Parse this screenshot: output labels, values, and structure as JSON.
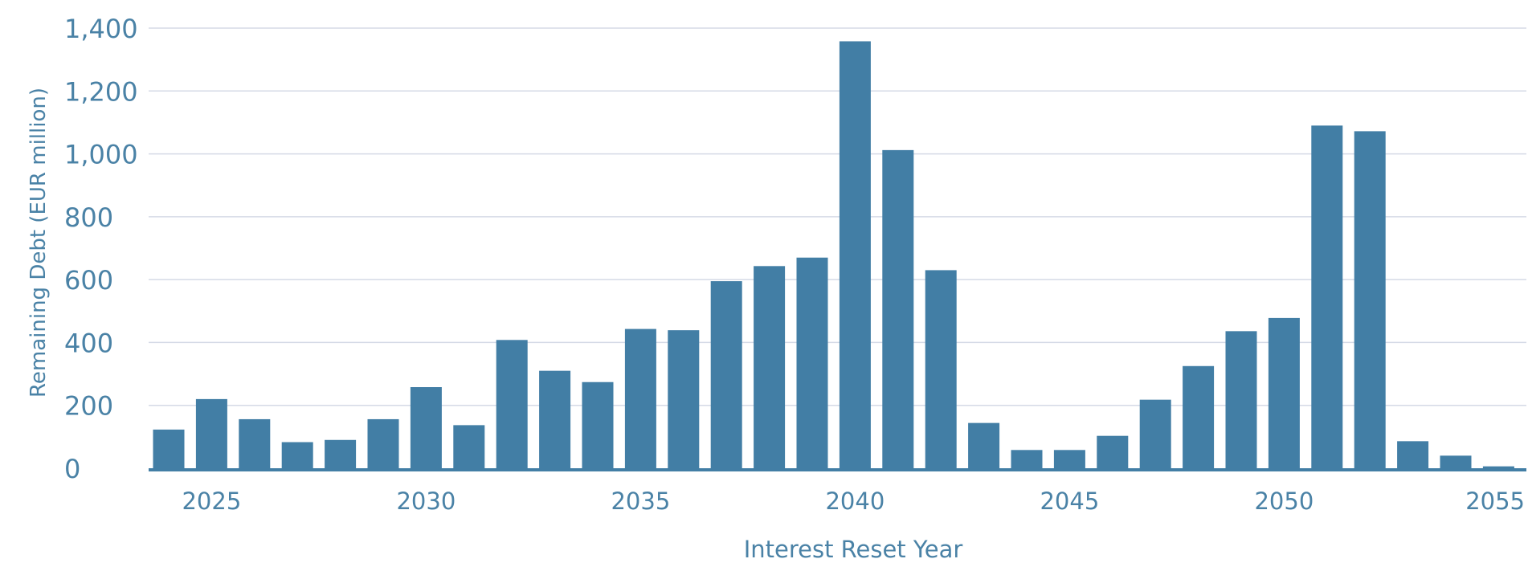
{
  "chart_data": {
    "type": "bar",
    "title": "",
    "xlabel": "Interest Reset Year",
    "ylabel": "Remaining Debt (EUR million)",
    "ylim": [
      0,
      1400
    ],
    "yticks": [
      0,
      200,
      400,
      600,
      800,
      1000,
      1200,
      1400
    ],
    "ytick_labels": [
      "0",
      "200",
      "400",
      "600",
      "800",
      "1,000",
      "1,200",
      "1,400"
    ],
    "xticks": [
      2025,
      2030,
      2035,
      2040,
      2045,
      2050,
      2055
    ],
    "xtick_labels": [
      "2025",
      "2030",
      "2035",
      "2040",
      "2045",
      "2050",
      "2055"
    ],
    "grid": true,
    "bar_color": "#427ea5",
    "grid_color": "#d5dae6",
    "text_color": "#4a82a6",
    "categories": [
      2024,
      2025,
      2026,
      2027,
      2028,
      2029,
      2030,
      2031,
      2032,
      2033,
      2034,
      2035,
      2036,
      2037,
      2038,
      2039,
      2040,
      2041,
      2042,
      2043,
      2044,
      2045,
      2046,
      2047,
      2048,
      2049,
      2050,
      2051,
      2052,
      2053,
      2054,
      2055
    ],
    "values": [
      123,
      220,
      156,
      83,
      90,
      156,
      258,
      137,
      408,
      310,
      274,
      443,
      439,
      595,
      643,
      670,
      1358,
      1012,
      630,
      144,
      58,
      58,
      103,
      218,
      325,
      436,
      478,
      1090,
      1072,
      86,
      40,
      6
    ]
  }
}
